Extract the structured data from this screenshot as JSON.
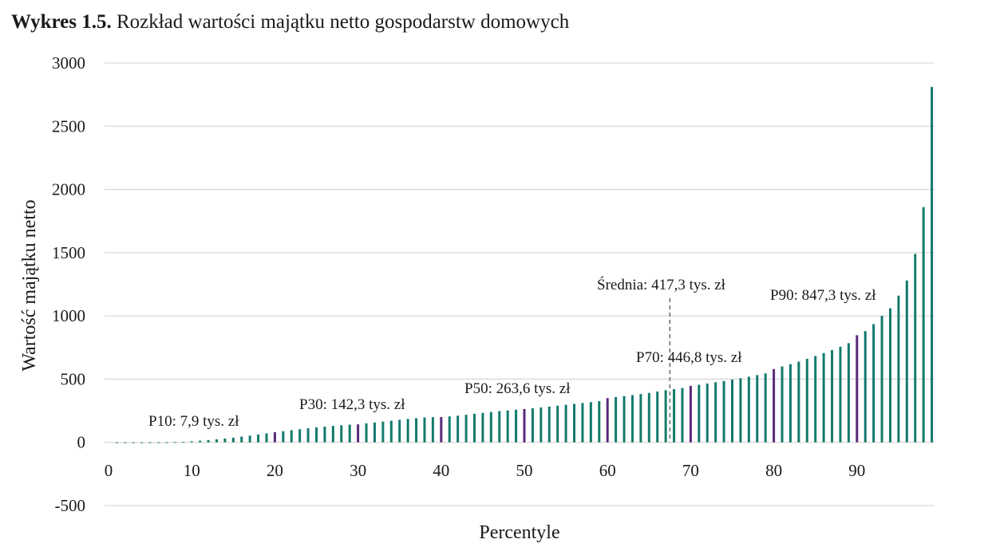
{
  "title": {
    "bold": "Wykres 1.5.",
    "text": " Rozkład wartości majątku netto gospodarstw domowych"
  },
  "chart_data": {
    "type": "bar",
    "title": "Wykres 1.5. Rozkład wartości majątku netto gospodarstw domowych",
    "xlabel": "Percentyle",
    "ylabel": "Wartość majątku netto",
    "ylim": [
      -500,
      3000
    ],
    "yticks": [
      3000,
      2500,
      2000,
      1500,
      1000,
      500,
      0,
      -500
    ],
    "xticks": [
      0,
      10,
      20,
      30,
      40,
      50,
      60,
      70,
      80,
      90
    ],
    "grid": true,
    "colors": {
      "bar": "#127a6c",
      "highlight": "#5a2a7a",
      "grid": "#d9d9d9",
      "mean_line": "#666666"
    },
    "highlight_percentiles": [
      20,
      30,
      40,
      50,
      60,
      70,
      80,
      90
    ],
    "x": [
      1,
      2,
      3,
      4,
      5,
      6,
      7,
      8,
      9,
      10,
      11,
      12,
      13,
      14,
      15,
      16,
      17,
      18,
      19,
      20,
      21,
      22,
      23,
      24,
      25,
      26,
      27,
      28,
      29,
      30,
      31,
      32,
      33,
      34,
      35,
      36,
      37,
      38,
      39,
      40,
      41,
      42,
      43,
      44,
      45,
      46,
      47,
      48,
      49,
      50,
      51,
      52,
      53,
      54,
      55,
      56,
      57,
      58,
      59,
      60,
      61,
      62,
      63,
      64,
      65,
      66,
      67,
      68,
      69,
      70,
      71,
      72,
      73,
      74,
      75,
      76,
      77,
      78,
      79,
      80,
      81,
      82,
      83,
      84,
      85,
      86,
      87,
      88,
      89,
      90,
      91,
      92,
      93,
      94,
      95,
      96,
      97,
      98,
      99
    ],
    "values": [
      -2,
      -1,
      0,
      0,
      0,
      0,
      0,
      1,
      3,
      7.9,
      13,
      18,
      24,
      30,
      37,
      45,
      53,
      62,
      71,
      80,
      88,
      96,
      104,
      111,
      118,
      124,
      130,
      135,
      140,
      142.3,
      150,
      157,
      164,
      171,
      178,
      185,
      191,
      197,
      199,
      200,
      205,
      211,
      218,
      226,
      233,
      240,
      247,
      252,
      258,
      263.6,
      269,
      276,
      283,
      290,
      297,
      304,
      311,
      318,
      325,
      350,
      358,
      366,
      374,
      382,
      391,
      402,
      412,
      421,
      430,
      446.8,
      455,
      465,
      475,
      485,
      496,
      507,
      519,
      532,
      545,
      580,
      600,
      618,
      638,
      660,
      683,
      706,
      730,
      756,
      784,
      847.3,
      880,
      935,
      1000,
      1060,
      1160,
      1280,
      1490,
      1860,
      2810
    ],
    "annotations": [
      {
        "label": "P10: 7,9 tys. zł",
        "percentile": 10,
        "value": 7.9
      },
      {
        "label": "P30: 142,3 tys. zł",
        "percentile": 30,
        "value": 142.3
      },
      {
        "label": "P50: 263,6 tys. zł",
        "percentile": 50,
        "value": 263.6
      },
      {
        "label": "P70: 446,8 tys. zł",
        "percentile": 70,
        "value": 446.8
      },
      {
        "label": "P90: 847,3 tys. zł",
        "percentile": 90,
        "value": 847.3
      },
      {
        "label": "Średnia: 417,3 tys. zł",
        "percentile": 67.5,
        "value": 417.3,
        "kind": "mean-line"
      }
    ]
  }
}
